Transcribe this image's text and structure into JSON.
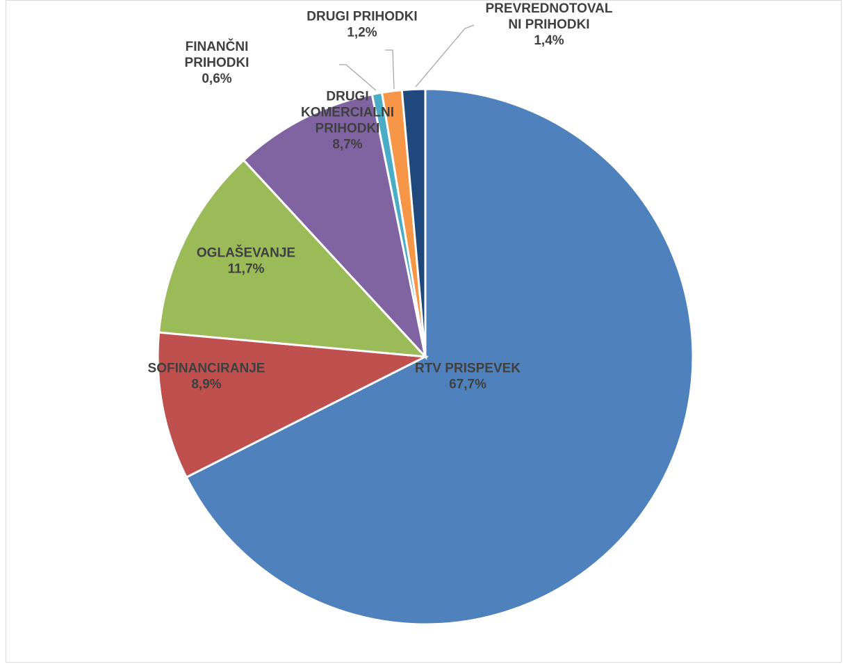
{
  "chart_data": {
    "type": "pie",
    "title": "",
    "start_angle_deg": 0,
    "direction": "clockwise",
    "slices": [
      {
        "name": "RTV PRISPEVEK",
        "label_lines": [
          "RTV PRISPEVEK"
        ],
        "value": 67.7,
        "value_label": "67,7%",
        "color": "#4f81bd"
      },
      {
        "name": "SOFINANCIRANJE",
        "label_lines": [
          "SOFINANCIRANJE"
        ],
        "value": 8.9,
        "value_label": "8,9%",
        "color": "#c0504d"
      },
      {
        "name": "OGLAŠEVANJE",
        "label_lines": [
          "OGLAŠEVANJE"
        ],
        "value": 11.7,
        "value_label": "11,7%",
        "color": "#9bbb59"
      },
      {
        "name": "DRUGI KOMERCIALNI PRIHODKI",
        "label_lines": [
          "DRUGI",
          "KOMERCIALNI",
          "PRIHODKI"
        ],
        "value": 8.7,
        "value_label": "8,7%",
        "color": "#8064a2"
      },
      {
        "name": "FINANČNI PRIHODKI",
        "label_lines": [
          "FINANČNI",
          "PRIHODKI"
        ],
        "value": 0.6,
        "value_label": "0,6%",
        "color": "#4bacc6"
      },
      {
        "name": "DRUGI PRIHODKI",
        "label_lines": [
          "DRUGI PRIHODKI"
        ],
        "value": 1.2,
        "value_label": "1,2%",
        "color": "#f79646"
      },
      {
        "name": "PREVREDNOTOVALNI PRIHODKI",
        "label_lines": [
          "PREVREDNOTOVAL",
          "NI PRIHODKI"
        ],
        "value": 1.4,
        "value_label": "1,4%",
        "color": "#1f497d"
      }
    ],
    "legend": "none",
    "data_labels": "category name and percentage"
  }
}
